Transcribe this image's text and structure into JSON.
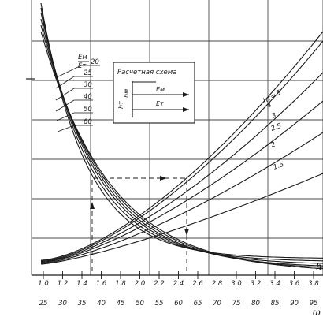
{
  "chart_data": {
    "type": "line",
    "x_axis_top": {
      "ticks": [
        "1.0",
        "1.2",
        "1.4",
        "1.6",
        "1.8",
        "2.0",
        "2.2",
        "2.4",
        "2.6",
        "2.8",
        "3.0",
        "3.2",
        "3.4",
        "3.6",
        "3.8"
      ],
      "values": [
        1.0,
        1.2,
        1.4,
        1.6,
        1.8,
        2.0,
        2.2,
        2.4,
        2.6,
        2.8,
        3.0,
        3.2,
        3.4,
        3.6,
        3.8
      ],
      "label": "h"
    },
    "x_axis_bottom": {
      "ticks": [
        "25",
        "30",
        "35",
        "40",
        "45",
        "50",
        "55",
        "60",
        "65",
        "70",
        "75",
        "80",
        "85",
        "90",
        "95"
      ],
      "label": "ω"
    },
    "left_family": {
      "label_top": "Eм",
      "label_bottom": "Eт",
      "params": [
        "20",
        "25",
        "30",
        "40",
        "50",
        "60"
      ]
    },
    "right_family": {
      "label": "hт",
      "params": [
        "5",
        "4",
        "3",
        "2.5",
        "2",
        "1.5"
      ]
    },
    "scheme": {
      "title": "Расчетная схема",
      "em": "Eм",
      "et": "Eт",
      "hm": "hм",
      "ht": "hт"
    }
  }
}
